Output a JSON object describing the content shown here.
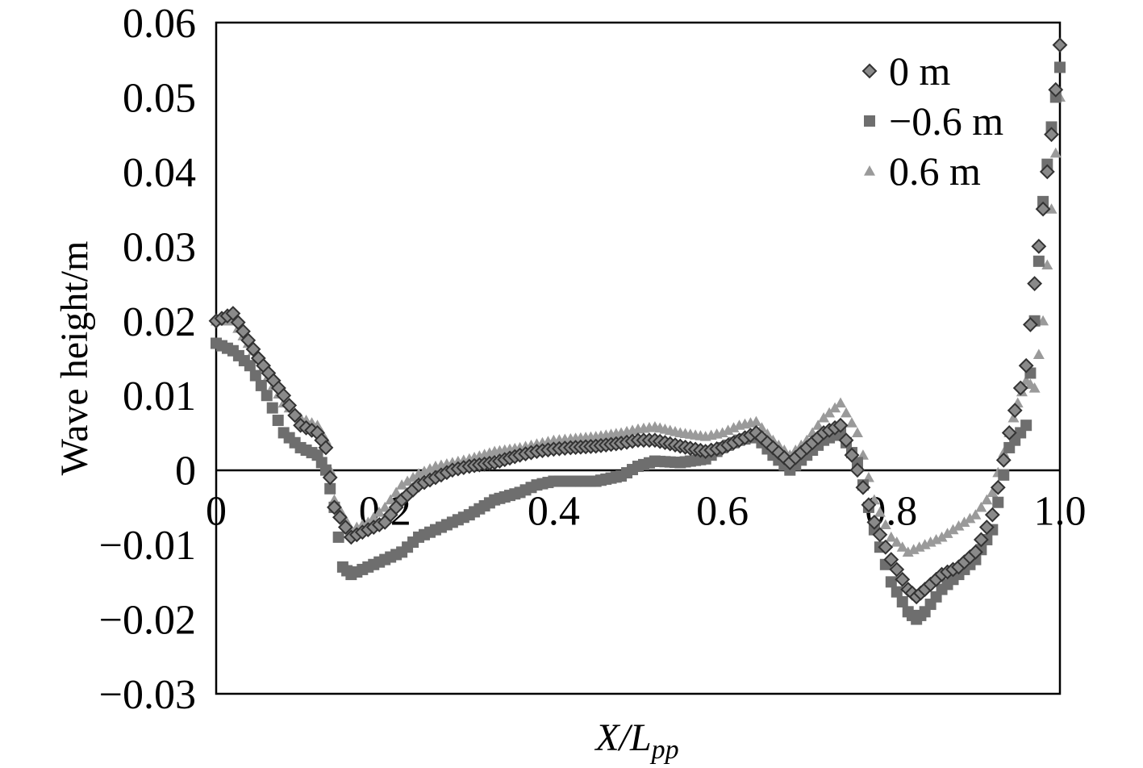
{
  "chart_data": {
    "type": "scatter",
    "xlabel_parts": {
      "base": "X/",
      "var": "L",
      "sub": "pp"
    },
    "ylabel": "Wave height/m",
    "xlim": [
      0,
      1.0
    ],
    "ylim": [
      -0.03,
      0.06
    ],
    "x_ticks": [
      {
        "value": 0.0,
        "label": "0"
      },
      {
        "value": 0.2,
        "label": "0.2"
      },
      {
        "value": 0.4,
        "label": "0.4"
      },
      {
        "value": 0.6,
        "label": "0.6"
      },
      {
        "value": 0.8,
        "label": "0.8"
      },
      {
        "value": 1.0,
        "label": "1.0"
      }
    ],
    "y_ticks": [
      {
        "value": 0.06,
        "label": "0.06"
      },
      {
        "value": 0.05,
        "label": "0.05"
      },
      {
        "value": 0.04,
        "label": "0.04"
      },
      {
        "value": 0.03,
        "label": "0.03"
      },
      {
        "value": 0.02,
        "label": "0.02"
      },
      {
        "value": 0.01,
        "label": "0.01"
      },
      {
        "value": 0.0,
        "label": "0"
      },
      {
        "value": -0.01,
        "label": "−0.01"
      },
      {
        "value": -0.02,
        "label": "−0.02"
      },
      {
        "value": -0.03,
        "label": "−0.03"
      }
    ],
    "grid": false,
    "legend_position": "top-right",
    "series": [
      {
        "name": "0 m",
        "marker": "diamond",
        "color": "#555555",
        "x": [
          0.0,
          0.02,
          0.05,
          0.08,
          0.1,
          0.12,
          0.13,
          0.14,
          0.16,
          0.18,
          0.2,
          0.22,
          0.24,
          0.26,
          0.28,
          0.3,
          0.33,
          0.36,
          0.38,
          0.4,
          0.42,
          0.45,
          0.48,
          0.5,
          0.52,
          0.55,
          0.58,
          0.6,
          0.62,
          0.64,
          0.66,
          0.68,
          0.7,
          0.72,
          0.74,
          0.76,
          0.78,
          0.8,
          0.82,
          0.83,
          0.84,
          0.86,
          0.88,
          0.9,
          0.92,
          0.94,
          0.96,
          0.97,
          0.98,
          0.99,
          1.0
        ],
        "y": [
          0.02,
          0.021,
          0.015,
          0.01,
          0.006,
          0.005,
          0.003,
          -0.005,
          -0.009,
          -0.008,
          -0.007,
          -0.004,
          -0.002,
          -0.001,
          0.0,
          0.0005,
          0.001,
          0.002,
          0.0025,
          0.0028,
          0.003,
          0.0032,
          0.0036,
          0.004,
          0.004,
          0.0032,
          0.0025,
          0.003,
          0.004,
          0.005,
          0.003,
          0.001,
          0.003,
          0.005,
          0.006,
          0.0,
          -0.007,
          -0.012,
          -0.016,
          -0.017,
          -0.016,
          -0.014,
          -0.013,
          -0.011,
          -0.006,
          0.005,
          0.014,
          0.025,
          0.035,
          0.045,
          0.057
        ]
      },
      {
        "name": "−0.6 m",
        "marker": "square",
        "color": "#6e6e6e",
        "x": [
          0.0,
          0.02,
          0.04,
          0.06,
          0.08,
          0.1,
          0.12,
          0.13,
          0.14,
          0.15,
          0.16,
          0.18,
          0.2,
          0.22,
          0.24,
          0.26,
          0.28,
          0.3,
          0.33,
          0.36,
          0.38,
          0.4,
          0.42,
          0.45,
          0.48,
          0.5,
          0.52,
          0.55,
          0.58,
          0.6,
          0.62,
          0.64,
          0.66,
          0.68,
          0.7,
          0.72,
          0.74,
          0.76,
          0.78,
          0.8,
          0.82,
          0.83,
          0.84,
          0.86,
          0.88,
          0.9,
          0.92,
          0.94,
          0.96,
          0.97,
          0.98,
          0.99,
          1.0
        ],
        "y": [
          0.017,
          0.016,
          0.014,
          0.01,
          0.005,
          0.003,
          0.002,
          0.0,
          -0.005,
          -0.013,
          -0.014,
          -0.013,
          -0.012,
          -0.011,
          -0.009,
          -0.008,
          -0.007,
          -0.006,
          -0.004,
          -0.003,
          -0.002,
          -0.0015,
          -0.0015,
          -0.0015,
          -0.0008,
          0.0005,
          0.0012,
          0.001,
          0.0015,
          0.003,
          0.004,
          0.0045,
          0.002,
          0.0,
          0.002,
          0.004,
          0.005,
          0.001,
          -0.008,
          -0.015,
          -0.019,
          -0.02,
          -0.019,
          -0.016,
          -0.014,
          -0.012,
          -0.008,
          0.003,
          0.006,
          0.02,
          0.036,
          0.046,
          0.054
        ]
      },
      {
        "name": "0.6 m",
        "marker": "triangle",
        "color": "#9a9a9a",
        "x": [
          0.0,
          0.02,
          0.05,
          0.08,
          0.1,
          0.12,
          0.13,
          0.14,
          0.16,
          0.18,
          0.2,
          0.22,
          0.24,
          0.26,
          0.28,
          0.3,
          0.33,
          0.36,
          0.38,
          0.4,
          0.42,
          0.45,
          0.48,
          0.5,
          0.52,
          0.55,
          0.58,
          0.6,
          0.62,
          0.64,
          0.66,
          0.68,
          0.7,
          0.72,
          0.74,
          0.76,
          0.78,
          0.8,
          0.82,
          0.84,
          0.86,
          0.88,
          0.9,
          0.92,
          0.94,
          0.95,
          0.96,
          0.97,
          0.98,
          0.99,
          1.0
        ],
        "y": [
          0.02,
          0.02,
          0.015,
          0.009,
          0.007,
          0.006,
          0.004,
          -0.004,
          -0.008,
          -0.007,
          -0.005,
          -0.002,
          -0.0005,
          0.0005,
          0.001,
          0.0015,
          0.0025,
          0.003,
          0.0035,
          0.004,
          0.0042,
          0.0045,
          0.005,
          0.0055,
          0.0058,
          0.005,
          0.0045,
          0.005,
          0.006,
          0.0065,
          0.004,
          0.002,
          0.004,
          0.007,
          0.009,
          0.005,
          -0.004,
          -0.009,
          -0.011,
          -0.01,
          -0.009,
          -0.0075,
          -0.006,
          -0.003,
          0.005,
          0.009,
          0.012,
          0.011,
          0.02,
          0.035,
          0.05
        ]
      }
    ]
  }
}
